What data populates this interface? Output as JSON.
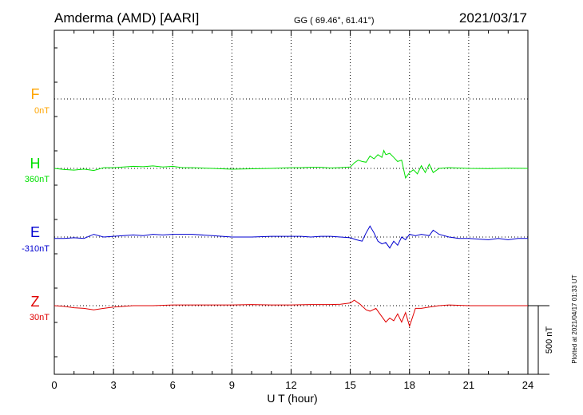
{
  "header": {
    "station": "Amderma (AMD)  [AARI]",
    "coords": "GG ( 69.46°,  61.41°)",
    "date": "2021/03/17"
  },
  "xaxis": {
    "label": "U T (hour)",
    "ticks": [
      "0",
      "3",
      "6",
      "9",
      "12",
      "15",
      "18",
      "21",
      "24"
    ]
  },
  "scale_bar_label": "500 nT",
  "plotted_note": "Plotted at 2021/04/17 01:33 UT",
  "colors": {
    "F": "#ffa500",
    "H": "#00e000",
    "E": "#0000d0",
    "Z": "#e00000",
    "axis": "#000000"
  },
  "chart_data": {
    "type": "line",
    "title": "Amderma (AMD)  [AARI]",
    "xlabel": "U T (hour)",
    "ylabel": "",
    "xlim": [
      0,
      24
    ],
    "grid": true,
    "scale_bar_nT": 500,
    "series": [
      {
        "name": "F",
        "baseline_label": "0nT",
        "color": "#ffa500",
        "x": [],
        "values": []
      },
      {
        "name": "H",
        "baseline_label": "360nT",
        "color": "#00e000",
        "x": [
          0,
          0.5,
          1.0,
          1.5,
          2.0,
          2.5,
          3.0,
          3.5,
          4.0,
          4.5,
          5.0,
          5.5,
          6.0,
          6.5,
          7.0,
          8.0,
          9.0,
          10.0,
          11.0,
          12.0,
          12.5,
          13.0,
          13.5,
          14.0,
          14.5,
          15.0,
          15.2,
          15.4,
          15.6,
          15.8,
          16.0,
          16.2,
          16.4,
          16.6,
          16.7,
          16.8,
          17.0,
          17.2,
          17.4,
          17.6,
          17.8,
          18.0,
          18.2,
          18.4,
          18.6,
          18.8,
          19.0,
          19.2,
          19.5,
          20.0,
          21.0,
          22.0,
          23.0,
          24.0
        ],
        "values": [
          0,
          -8,
          -12,
          -5,
          -15,
          5,
          5,
          10,
          15,
          12,
          18,
          10,
          15,
          5,
          5,
          0,
          -6,
          -3,
          0,
          5,
          5,
          8,
          8,
          3,
          6,
          10,
          40,
          60,
          50,
          45,
          90,
          70,
          100,
          80,
          130,
          100,
          110,
          80,
          50,
          60,
          -70,
          -30,
          -10,
          -40,
          20,
          -30,
          30,
          -30,
          0,
          5,
          0,
          -2,
          2,
          0
        ]
      },
      {
        "name": "E",
        "baseline_label": "-310nT",
        "color": "#0000d0",
        "x": [
          0,
          0.5,
          1.0,
          1.5,
          2.0,
          2.5,
          3.0,
          3.5,
          4.0,
          4.5,
          5.0,
          5.5,
          6.0,
          7.0,
          8.0,
          9.0,
          10.0,
          11.0,
          12.0,
          12.5,
          13.0,
          13.5,
          14.0,
          14.5,
          15.0,
          15.3,
          15.6,
          15.8,
          16.0,
          16.2,
          16.4,
          16.6,
          16.8,
          17.0,
          17.2,
          17.4,
          17.6,
          17.8,
          18.0,
          18.3,
          18.6,
          19.0,
          19.2,
          19.5,
          20.0,
          20.5,
          21.0,
          22.0,
          22.5,
          23.0,
          23.5,
          24.0
        ],
        "values": [
          -10,
          -10,
          -5,
          -10,
          20,
          0,
          5,
          10,
          15,
          10,
          20,
          15,
          20,
          20,
          10,
          0,
          0,
          5,
          5,
          5,
          0,
          5,
          5,
          0,
          -5,
          -20,
          -30,
          30,
          80,
          30,
          -30,
          -50,
          -40,
          -80,
          -30,
          -60,
          0,
          -20,
          20,
          10,
          20,
          10,
          50,
          20,
          0,
          -10,
          -10,
          -20,
          -10,
          -20,
          -10,
          -10
        ]
      },
      {
        "name": "Z",
        "baseline_label": "30nT",
        "color": "#e00000",
        "x": [
          0,
          0.5,
          1.0,
          1.5,
          2.0,
          2.5,
          3.0,
          4.0,
          5.0,
          6.0,
          7.0,
          8.0,
          9.0,
          10.0,
          11.0,
          12.0,
          13.0,
          14.0,
          14.5,
          15.0,
          15.2,
          15.5,
          15.8,
          16.0,
          16.3,
          16.6,
          16.8,
          17.0,
          17.2,
          17.4,
          17.6,
          17.8,
          18.0,
          18.3,
          18.6,
          19.0,
          19.5,
          20.0,
          21.0,
          22.0,
          23.0,
          24.0
        ],
        "values": [
          0,
          -5,
          -15,
          -20,
          -30,
          -20,
          -10,
          0,
          0,
          5,
          5,
          5,
          5,
          8,
          5,
          5,
          8,
          8,
          10,
          20,
          40,
          10,
          -30,
          -40,
          -20,
          -80,
          -120,
          -90,
          -110,
          -60,
          -120,
          -50,
          -150,
          -20,
          -20,
          -10,
          0,
          5,
          0,
          0,
          0,
          0
        ]
      }
    ]
  }
}
